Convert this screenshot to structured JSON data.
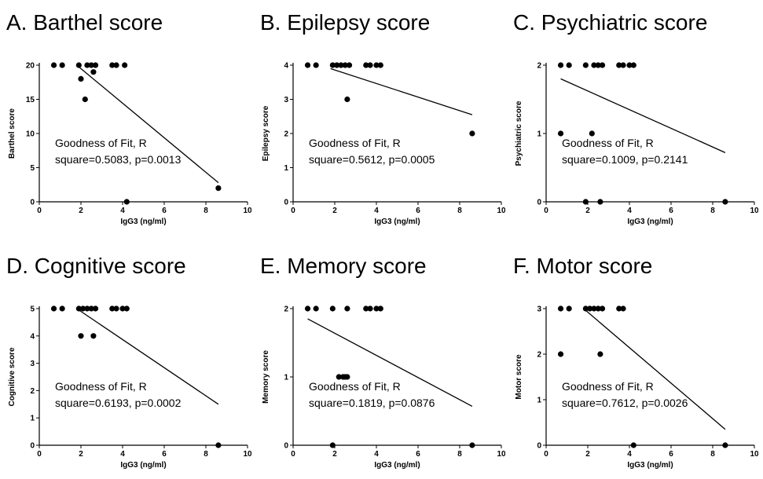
{
  "chart_data": [
    {
      "type": "scatter",
      "title": "A. Barthel score",
      "xlabel": "IgG3 (ng/ml)",
      "ylabel": "Barthel score",
      "xlim": [
        0,
        10
      ],
      "ylim": [
        0,
        20
      ],
      "xticks": [
        0,
        2,
        4,
        6,
        8,
        10
      ],
      "yticks": [
        0,
        5,
        10,
        15,
        20
      ],
      "annotation": [
        "Goodness of Fit, R",
        "square=0.5083, p=0.0013"
      ],
      "points": [
        [
          0.7,
          20
        ],
        [
          1.1,
          20
        ],
        [
          1.9,
          20
        ],
        [
          2.0,
          18
        ],
        [
          2.2,
          15
        ],
        [
          2.3,
          20
        ],
        [
          2.5,
          20
        ],
        [
          2.7,
          20
        ],
        [
          2.6,
          19
        ],
        [
          3.5,
          20
        ],
        [
          3.7,
          20
        ],
        [
          4.1,
          20
        ],
        [
          4.2,
          0
        ],
        [
          8.6,
          2
        ]
      ],
      "fit": [
        [
          1.8,
          20.0
        ],
        [
          8.6,
          2.8
        ]
      ]
    },
    {
      "type": "scatter",
      "title": "B. Epilepsy score",
      "xlabel": "IgG3 (ng/ml)",
      "ylabel": "Epilepsy score",
      "xlim": [
        0,
        10
      ],
      "ylim": [
        0,
        4
      ],
      "xticks": [
        0,
        2,
        4,
        6,
        8,
        10
      ],
      "yticks": [
        0,
        1,
        2,
        3,
        4
      ],
      "annotation": [
        "Goodness of Fit, R",
        "square=0.5612, p=0.0005"
      ],
      "points": [
        [
          0.7,
          4
        ],
        [
          1.1,
          4
        ],
        [
          1.9,
          4
        ],
        [
          2.1,
          4
        ],
        [
          2.3,
          4
        ],
        [
          2.5,
          4
        ],
        [
          2.7,
          4
        ],
        [
          2.6,
          3
        ],
        [
          3.5,
          4
        ],
        [
          3.7,
          4
        ],
        [
          4.0,
          4
        ],
        [
          4.2,
          4
        ],
        [
          8.6,
          2
        ]
      ],
      "fit": [
        [
          1.8,
          3.9
        ],
        [
          8.6,
          2.55
        ]
      ]
    },
    {
      "type": "scatter",
      "title": "C. Psychiatric score",
      "xlabel": "IgG3 (ng/ml)",
      "ylabel": "Psychiatric score",
      "xlim": [
        0,
        10
      ],
      "ylim": [
        0,
        2
      ],
      "xticks": [
        0,
        2,
        4,
        6,
        8,
        10
      ],
      "yticks": [
        0,
        1,
        2
      ],
      "annotation": [
        "Goodness of Fit, R",
        "square=0.1009, p=0.2141"
      ],
      "points": [
        [
          0.7,
          2
        ],
        [
          1.1,
          2
        ],
        [
          1.9,
          2
        ],
        [
          2.3,
          2
        ],
        [
          2.5,
          2
        ],
        [
          2.7,
          2
        ],
        [
          3.5,
          2
        ],
        [
          3.7,
          2
        ],
        [
          4.0,
          2
        ],
        [
          4.2,
          2
        ],
        [
          0.7,
          1
        ],
        [
          2.2,
          1
        ],
        [
          1.9,
          0
        ],
        [
          2.6,
          0
        ],
        [
          8.6,
          0
        ]
      ],
      "fit": [
        [
          0.7,
          1.8
        ],
        [
          8.6,
          0.72
        ]
      ]
    },
    {
      "type": "scatter",
      "title": "D. Cognitive score",
      "xlabel": "IgG3 (ng/ml)",
      "ylabel": "Cognitive score",
      "xlim": [
        0,
        10
      ],
      "ylim": [
        0,
        5
      ],
      "xticks": [
        0,
        2,
        4,
        6,
        8,
        10
      ],
      "yticks": [
        0,
        1,
        2,
        3,
        4,
        5
      ],
      "annotation": [
        "Goodness of Fit, R",
        "square=0.6193, p=0.0002"
      ],
      "points": [
        [
          0.7,
          5
        ],
        [
          1.1,
          5
        ],
        [
          1.9,
          5
        ],
        [
          2.1,
          5
        ],
        [
          2.3,
          5
        ],
        [
          2.5,
          5
        ],
        [
          2.7,
          5
        ],
        [
          2.0,
          4
        ],
        [
          2.6,
          4
        ],
        [
          3.5,
          5
        ],
        [
          3.7,
          5
        ],
        [
          4.0,
          5
        ],
        [
          4.2,
          5
        ],
        [
          8.6,
          0
        ]
      ],
      "fit": [
        [
          1.8,
          5.0
        ],
        [
          8.6,
          1.5
        ]
      ]
    },
    {
      "type": "scatter",
      "title": "E. Memory score",
      "xlabel": "IgG3 (ng/ml)",
      "ylabel": "Memory score",
      "xlim": [
        0,
        10
      ],
      "ylim": [
        0,
        2
      ],
      "xticks": [
        0,
        2,
        4,
        6,
        8,
        10
      ],
      "yticks": [
        0,
        1,
        2
      ],
      "annotation": [
        "Goodness of Fit, R",
        "square=0.1819, p=0.0876"
      ],
      "points": [
        [
          0.7,
          2
        ],
        [
          1.1,
          2
        ],
        [
          1.9,
          2
        ],
        [
          2.6,
          2
        ],
        [
          3.5,
          2
        ],
        [
          3.7,
          2
        ],
        [
          4.0,
          2
        ],
        [
          4.2,
          2
        ],
        [
          2.2,
          1
        ],
        [
          2.4,
          1
        ],
        [
          2.5,
          1
        ],
        [
          2.6,
          1
        ],
        [
          1.9,
          0
        ],
        [
          8.6,
          0
        ]
      ],
      "fit": [
        [
          0.7,
          1.85
        ],
        [
          8.6,
          0.57
        ]
      ]
    },
    {
      "type": "scatter",
      "title": "F. Motor score",
      "xlabel": "IgG3 (ng/ml)",
      "ylabel": "Motor score",
      "xlim": [
        0,
        10
      ],
      "ylim": [
        0,
        3
      ],
      "xticks": [
        0,
        2,
        4,
        6,
        8,
        10
      ],
      "yticks": [
        0,
        1,
        2,
        3
      ],
      "annotation": [
        "Goodness of Fit, R",
        "square=0.7612, p=0.0026"
      ],
      "points": [
        [
          0.7,
          3
        ],
        [
          1.1,
          3
        ],
        [
          1.9,
          3
        ],
        [
          2.1,
          3
        ],
        [
          2.3,
          3
        ],
        [
          2.5,
          3
        ],
        [
          2.7,
          3
        ],
        [
          0.7,
          2
        ],
        [
          2.6,
          2
        ],
        [
          3.5,
          3
        ],
        [
          3.7,
          3
        ],
        [
          4.2,
          0
        ],
        [
          8.6,
          0
        ]
      ],
      "fit": [
        [
          1.8,
          3.0
        ],
        [
          8.6,
          0.35
        ]
      ]
    }
  ]
}
